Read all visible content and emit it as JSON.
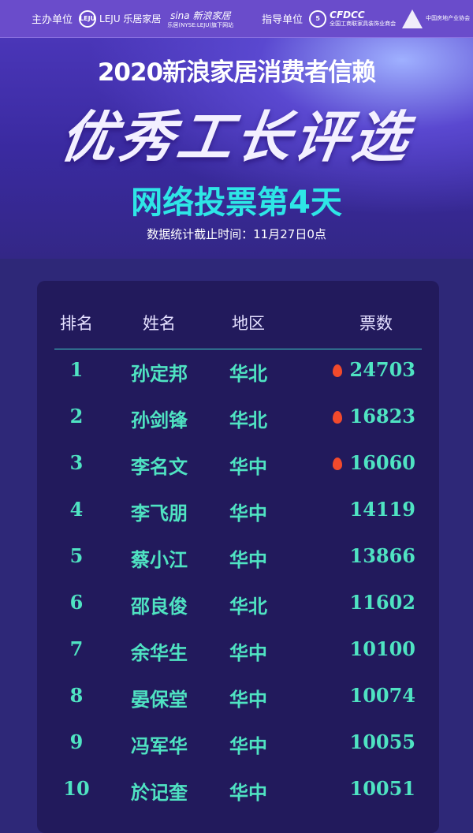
{
  "topbar": {
    "host_label": "主办单位",
    "host_logos": [
      "LEJU 乐居家居",
      "sina 新浪家居"
    ],
    "sina_sub": "乐居(NYSE:LEJU)旗下网站",
    "guide_label": "指导单位",
    "guide_logos": [
      "CFDCC",
      "中国房地产业协会"
    ],
    "cfdcc_sub": "全国工商联家具装饰业商会"
  },
  "banner": {
    "subtitle": "2020新浪家居消费者信赖",
    "title": "优秀工长评选",
    "day": "网络投票第4天",
    "cutoff": "数据统计截止时间：11月27日0点"
  },
  "table": {
    "headers": [
      "排名",
      "姓名",
      "地区",
      "票数"
    ],
    "rows": [
      {
        "rank": "1",
        "name": "孙定邦",
        "region": "华北",
        "votes": "24703",
        "hot": true
      },
      {
        "rank": "2",
        "name": "孙剑锋",
        "region": "华北",
        "votes": "16823",
        "hot": true
      },
      {
        "rank": "3",
        "name": "李名文",
        "region": "华中",
        "votes": "16060",
        "hot": true
      },
      {
        "rank": "4",
        "name": "李飞朋",
        "region": "华中",
        "votes": "14119",
        "hot": false
      },
      {
        "rank": "5",
        "name": "蔡小江",
        "region": "华中",
        "votes": "13866",
        "hot": false
      },
      {
        "rank": "6",
        "name": "邵良俊",
        "region": "华北",
        "votes": "11602",
        "hot": false
      },
      {
        "rank": "7",
        "name": "余华生",
        "region": "华中",
        "votes": "10100",
        "hot": false
      },
      {
        "rank": "8",
        "name": "晏保堂",
        "region": "华中",
        "votes": "10074",
        "hot": false
      },
      {
        "rank": "9",
        "name": "冯军华",
        "region": "华中",
        "votes": "10055",
        "hot": false
      },
      {
        "rank": "10",
        "name": "於记奎",
        "region": "华中",
        "votes": "10051",
        "hot": false
      }
    ]
  },
  "colors": {
    "accent": "#4fe3c2",
    "hot": "#f24a2c",
    "card": "#221a5c",
    "background": "#2e2878",
    "topbar": "#6a4ccb"
  }
}
